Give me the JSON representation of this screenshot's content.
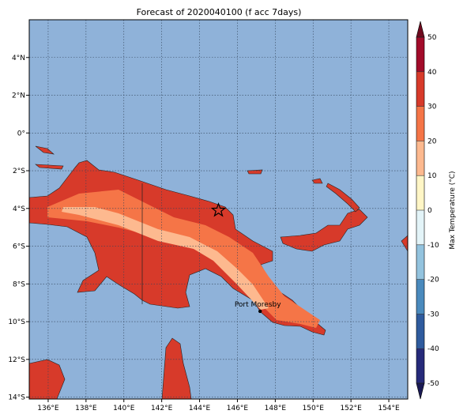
{
  "map": {
    "title": "Forecast of 2020040100 (f acc 7days)",
    "lonlim": [
      135,
      155
    ],
    "latlim": [
      -14.1,
      6
    ],
    "ocean_color": "#8fb2d9",
    "lonticks": [
      {
        "value": 136,
        "label": "136°E"
      },
      {
        "value": 138,
        "label": "138°E"
      },
      {
        "value": 140,
        "label": "140°E"
      },
      {
        "value": 142,
        "label": "142°E"
      },
      {
        "value": 144,
        "label": "144°E"
      },
      {
        "value": 146,
        "label": "146°E"
      },
      {
        "value": 148,
        "label": "148°E"
      },
      {
        "value": 150,
        "label": "150°E"
      },
      {
        "value": 152,
        "label": "152°E"
      },
      {
        "value": 154,
        "label": "154°E"
      }
    ],
    "latticks": [
      {
        "value": 4,
        "label": "4°N"
      },
      {
        "value": 2,
        "label": "2°N"
      },
      {
        "value": 0,
        "label": "0°"
      },
      {
        "value": -2,
        "label": "2°S"
      },
      {
        "value": -4,
        "label": "4°S"
      },
      {
        "value": -6,
        "label": "6°S"
      },
      {
        "value": -8,
        "label": "8°S"
      },
      {
        "value": -10,
        "label": "10°S"
      },
      {
        "value": -12,
        "label": "12°S"
      },
      {
        "value": -14,
        "label": "14°S"
      }
    ],
    "grid": true,
    "marker": {
      "lon": 145.0,
      "lat": -4.1
    },
    "city": {
      "name": "Port Moresby",
      "lon": 147.2,
      "lat": -9.45
    },
    "colorbar": {
      "label": "Max Temperature (°C)",
      "ticks": [
        -50,
        -40,
        -30,
        -20,
        -10,
        0,
        10,
        20,
        30,
        40,
        50
      ],
      "colors": [
        "#262a7a",
        "#2f5b9e",
        "#4a8abd",
        "#93c3de",
        "#e3f4f8",
        "#fff6c6",
        "#fdb98f",
        "#f57547",
        "#d73a2a",
        "#a20c2a"
      ],
      "under_color": "#1a1a55",
      "over_color": "#6e0a1e"
    }
  }
}
